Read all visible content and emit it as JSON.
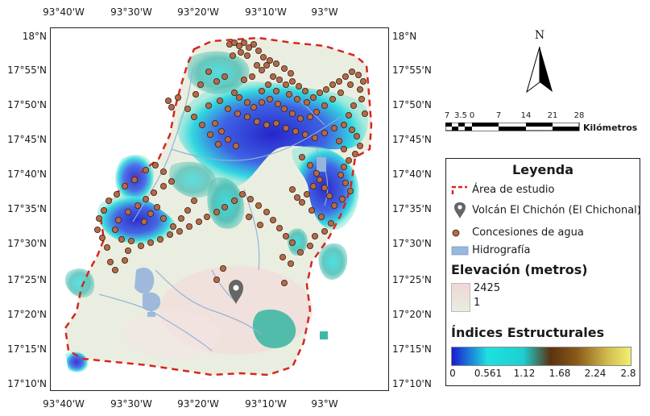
{
  "map": {
    "lon_labels": [
      "93°40'W",
      "93°30'W",
      "93°20'W",
      "93°10'W",
      "93°W"
    ],
    "lat_labels": [
      "18°N",
      "17°55'N",
      "17°50'N",
      "17°45'N",
      "17°40'N",
      "17°35'N",
      "17°30'N",
      "17°25'N",
      "17°20'N",
      "17°15'N",
      "17°10'N"
    ],
    "volcano_marker_icon": "map-pin-icon",
    "water_concession_count_shown": "many"
  },
  "north_arrow": {
    "label": "N"
  },
  "scale_bar": {
    "ticks": [
      "7",
      "3.5",
      "0",
      "7",
      "14",
      "21",
      "28"
    ],
    "unit": "Kilómetros"
  },
  "legend": {
    "title": "Leyenda",
    "items": [
      {
        "label": "Área de estudio",
        "symbol": "dashed-red-boundary"
      },
      {
        "label": "Volcán El Chichón (El Chichonal)",
        "symbol": "map-pin-icon"
      },
      {
        "label": "Concesiones de agua",
        "symbol": "brown-dot"
      },
      {
        "label": "Hidrografía",
        "symbol": "blue-rect"
      }
    ],
    "elevation": {
      "title": "Elevación (metros)",
      "max": "2425",
      "min": "1"
    },
    "structural": {
      "title": "Índices Estructurales",
      "ticks": [
        "0",
        "0.561",
        "1.12",
        "1.68",
        "2.24",
        "2.8"
      ]
    }
  },
  "colors": {
    "boundary": "#d7261e",
    "concession": "#b36a4a",
    "hydro": "#9ab7dc",
    "index_low": "#1a1ad0",
    "index_mid": "#1ee0e0",
    "index_dark": "#5a3310",
    "index_high": "#f0f070"
  }
}
